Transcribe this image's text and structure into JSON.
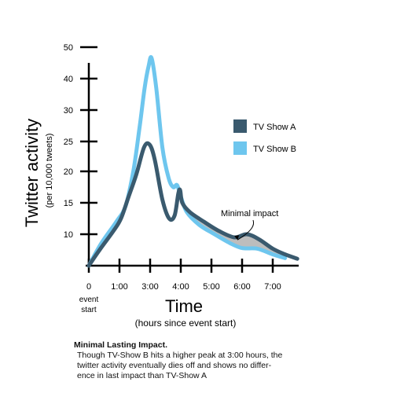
{
  "chart_data": {
    "type": "line",
    "ylabel": "Twitter activity",
    "ylabel_sub": "(per 10,000 tweets)",
    "xlabel": "Time",
    "xlabel_sub": "(hours since event start)",
    "y_ticks": [
      10,
      15,
      20,
      25,
      30,
      40,
      50
    ],
    "x_ticks": [
      {
        "hours": 0,
        "label": "0"
      },
      {
        "hours": 1,
        "label": "1:00"
      },
      {
        "hours": 2,
        "label": "3:00"
      },
      {
        "hours": 3,
        "label": "4:00"
      },
      {
        "hours": 4,
        "label": "5:00"
      },
      {
        "hours": 5,
        "label": "6:00"
      },
      {
        "hours": 6,
        "label": "7:00"
      }
    ],
    "x_zero_sublabel": [
      "event",
      "start"
    ],
    "legend_position": "top-right",
    "series": [
      {
        "name": "TV Show A",
        "color": "#3a5a6e",
        "points": [
          [
            0,
            5
          ],
          [
            0.35,
            7.5
          ],
          [
            0.8,
            10.5
          ],
          [
            1.05,
            12.5
          ],
          [
            1.3,
            16
          ],
          [
            1.55,
            19.5
          ],
          [
            1.8,
            24
          ],
          [
            1.98,
            24.5
          ],
          [
            2.15,
            22
          ],
          [
            2.4,
            15.5
          ],
          [
            2.62,
            12.5
          ],
          [
            2.8,
            13
          ],
          [
            2.92,
            16.5
          ],
          [
            2.98,
            17
          ],
          [
            3.05,
            15
          ],
          [
            3.3,
            13.5
          ],
          [
            3.75,
            12
          ],
          [
            4.25,
            10.5
          ],
          [
            4.75,
            9.5
          ],
          [
            5.15,
            10
          ],
          [
            5.55,
            9.2
          ],
          [
            6.0,
            7.7
          ],
          [
            6.4,
            6.8
          ],
          [
            6.8,
            6.1
          ]
        ]
      },
      {
        "name": "TV Show B",
        "color": "#6ec6ee",
        "points": [
          [
            0,
            5
          ],
          [
            0.4,
            8.5
          ],
          [
            0.9,
            12
          ],
          [
            1.2,
            14.5
          ],
          [
            1.45,
            20
          ],
          [
            1.65,
            27
          ],
          [
            1.82,
            37
          ],
          [
            1.95,
            44
          ],
          [
            2.05,
            46.5
          ],
          [
            2.2,
            37
          ],
          [
            2.4,
            24
          ],
          [
            2.6,
            19
          ],
          [
            2.75,
            17.5
          ],
          [
            2.88,
            17.8
          ],
          [
            3.0,
            16
          ],
          [
            3.2,
            13.5
          ],
          [
            3.6,
            11.5
          ],
          [
            4.1,
            10
          ],
          [
            4.6,
            8.6
          ],
          [
            5.0,
            7.8
          ],
          [
            5.5,
            7.7
          ],
          [
            6.0,
            6.8
          ],
          [
            6.4,
            6.2
          ]
        ]
      }
    ],
    "annotation": {
      "text": "Minimal impact",
      "at": [
        4.85,
        9.1
      ]
    }
  },
  "caption": {
    "title": "Minimal Lasting Impact.",
    "lines": [
      "Though TV-Show B hits a higher peak at 3:00 hours,  the",
      "twitter activity eventually dies off and shows no differ-",
      "ence in last impact than TV-Show A"
    ]
  }
}
